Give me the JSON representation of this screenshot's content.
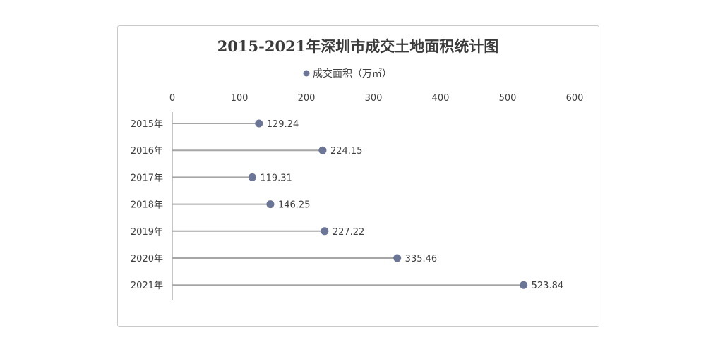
{
  "chart_data": {
    "type": "lollipop",
    "title": "2015-2021年深圳市成交土地面积统计图",
    "legend": "成交面积（万㎡）",
    "legend_position": "top",
    "x_axis_position": "top",
    "xlim": [
      0,
      600
    ],
    "xticks": [
      "0",
      "100",
      "200",
      "300",
      "400",
      "500",
      "600"
    ],
    "grid": false,
    "categories": [
      "2015年",
      "2016年",
      "2017年",
      "2018年",
      "2019年",
      "2020年",
      "2021年"
    ],
    "values": [
      129.24,
      224.15,
      119.31,
      146.25,
      227.22,
      335.46,
      523.84
    ],
    "labels": [
      "129.24",
      "224.15",
      "119.31",
      "146.25",
      "227.22",
      "335.46",
      "523.84"
    ],
    "colors": {
      "marker": "#6b7596",
      "stem": "#a6a6a6",
      "axis": "#8c8c8c"
    }
  }
}
